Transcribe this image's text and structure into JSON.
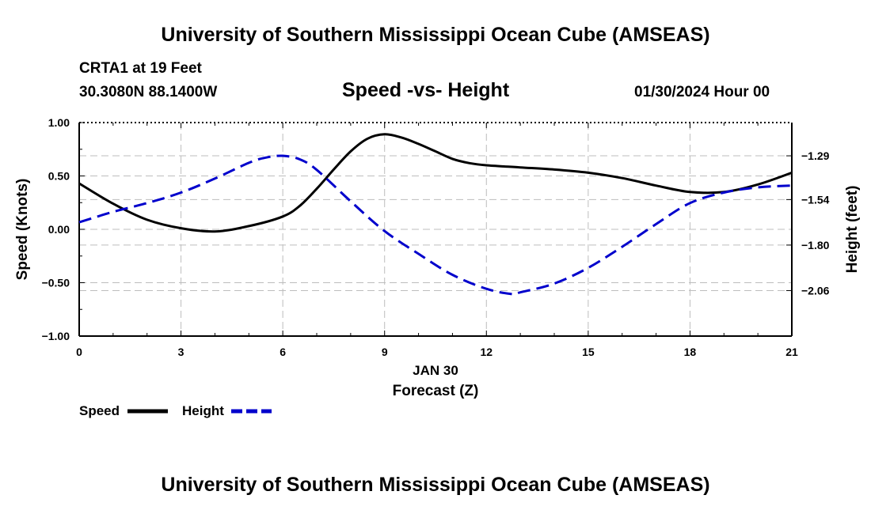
{
  "header": {
    "title": "University of Southern Mississippi Ocean Cube (AMSEAS)",
    "station": "CRTA1 at 19 Feet",
    "coords": "30.3080N  88.1400W",
    "plot_title": "Speed -vs- Height",
    "valid_time": "01/30/2024 Hour 00"
  },
  "footer": {
    "title": "University of Southern Mississippi Ocean Cube (AMSEAS)"
  },
  "chart_data": {
    "type": "line",
    "title": "Speed -vs- Height",
    "xlabel": "Forecast (Z)",
    "xdate": "JAN 30",
    "ylabel": "Speed (Knots)",
    "y2label": "Height (feet)",
    "xlim": [
      0,
      21
    ],
    "ylim": [
      -1.0,
      1.0
    ],
    "y2lim": [
      -2.32,
      -1.1
    ],
    "xticks": [
      0,
      3,
      6,
      9,
      12,
      15,
      18,
      21
    ],
    "xtick_labels": [
      "0",
      "3",
      "6",
      "9",
      "12",
      "15",
      "18",
      "21"
    ],
    "yticks": [
      -1.0,
      -0.5,
      0.0,
      0.5,
      1.0
    ],
    "ytick_labels": [
      "−1.00",
      "−0.50",
      "0.00",
      "0.50",
      "1.00"
    ],
    "y2ticks": [
      -1.29,
      -1.54,
      -1.8,
      -2.06
    ],
    "y2tick_labels": [
      "−1.29",
      "−1.54",
      "−1.80",
      "−2.06"
    ],
    "grid": true,
    "legend": [
      "Speed",
      "Height"
    ],
    "series": [
      {
        "name": "Speed",
        "axis": "left",
        "color": "#000000",
        "dash": "solid",
        "x": [
          0,
          1,
          2,
          3,
          4,
          5,
          6,
          6.5,
          7,
          7.5,
          8,
          8.5,
          9,
          9.5,
          10,
          10.5,
          11,
          11.5,
          12,
          13,
          14,
          15,
          16,
          17,
          18,
          19,
          20,
          21
        ],
        "values": [
          0.43,
          0.24,
          0.09,
          0.01,
          -0.02,
          0.03,
          0.12,
          0.22,
          0.38,
          0.56,
          0.73,
          0.85,
          0.89,
          0.86,
          0.8,
          0.73,
          0.66,
          0.62,
          0.6,
          0.58,
          0.56,
          0.53,
          0.48,
          0.41,
          0.35,
          0.35,
          0.42,
          0.53
        ]
      },
      {
        "name": "Height",
        "axis": "right",
        "color": "#0000cc",
        "dash": "dashed",
        "x": [
          0,
          1,
          2,
          3,
          4,
          5,
          5.5,
          6,
          6.5,
          7,
          8,
          9,
          10,
          11,
          12,
          12.75,
          13,
          14,
          15,
          16,
          17,
          18,
          19,
          20,
          21
        ],
        "values": [
          -1.67,
          -1.61,
          -1.56,
          -1.5,
          -1.42,
          -1.33,
          -1.3,
          -1.29,
          -1.31,
          -1.37,
          -1.55,
          -1.72,
          -1.85,
          -1.97,
          -2.05,
          -2.08,
          -2.07,
          -2.02,
          -1.93,
          -1.81,
          -1.68,
          -1.56,
          -1.5,
          -1.47,
          -1.46
        ]
      }
    ]
  }
}
